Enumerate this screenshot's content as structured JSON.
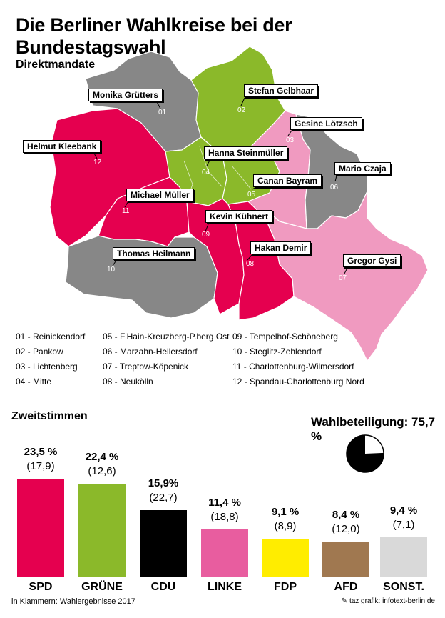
{
  "title": "Die Berliner Wahlkreise bei der Bundestagswahl",
  "direct_section_title": "Direktmandate",
  "districts": [
    {
      "num": "01",
      "name": "Reinickendorf",
      "candidate": "Monika Grütters",
      "color": "#878787"
    },
    {
      "num": "02",
      "name": "Pankow",
      "candidate": "Stefan Gelbhaar",
      "color": "#8bb92a"
    },
    {
      "num": "03",
      "name": "Lichtenberg",
      "candidate": "Gesine Lötzsch",
      "color": "#f09ac0"
    },
    {
      "num": "04",
      "name": "Mitte",
      "candidate": "Hanna Steinmüller",
      "color": "#8bb92a"
    },
    {
      "num": "05",
      "name": "F'Hain-Kreuzberg-P.berg Ost",
      "candidate": "Canan Bayram",
      "color": "#8bb92a"
    },
    {
      "num": "06",
      "name": "Marzahn-Hellersdorf",
      "candidate": "Mario Czaja",
      "color": "#878787"
    },
    {
      "num": "07",
      "name": "Treptow-Köpenick",
      "candidate": "Gregor Gysi",
      "color": "#f09ac0"
    },
    {
      "num": "08",
      "name": "Neukölln",
      "candidate": "Hakan Demir",
      "color": "#e5004f"
    },
    {
      "num": "09",
      "name": "Tempelhof-Schöneberg",
      "candidate": "Kevin Kühnert",
      "color": "#e5004f"
    },
    {
      "num": "10",
      "name": "Steglitz-Zehlendorf",
      "candidate": "Thomas Heilmann",
      "color": "#878787"
    },
    {
      "num": "11",
      "name": "Charlottenburg-Wilmersdorf",
      "candidate": "Michael Müller",
      "color": "#e5004f"
    },
    {
      "num": "12",
      "name": "Spandau-Charlottenburg Nord",
      "candidate": "Helmut Kleebank",
      "color": "#e5004f"
    }
  ],
  "legend_items": [
    "01 - Reinickendorf",
    "02 - Pankow",
    "03 - Lichtenberg",
    "04 - Mitte",
    "05 - F'Hain-Kreuzberg-P.berg Ost",
    "06 - Marzahn-Hellersdorf",
    "07 - Treptow-Köpenick",
    "08 - Neukölln",
    "09 - Tempelhof-Schöneberg",
    "10 - Steglitz-Zehlendorf",
    "11 - Charlottenburg-Wilmersdorf",
    "12 - Spandau-Charlottenburg Nord"
  ],
  "turnout": {
    "label": "Wahlbeteiligung: 75,7 %",
    "value": 75.7
  },
  "chart_data": {
    "type": "bar",
    "title": "Zweitstimmen",
    "categories": [
      "SPD",
      "GRÜNE",
      "CDU",
      "LINKE",
      "FDP",
      "AFD",
      "SONST."
    ],
    "values": [
      23.5,
      22.4,
      15.9,
      11.4,
      9.1,
      8.4,
      9.4
    ],
    "value_labels": [
      "23,5 %",
      "22,4 %",
      "15,9%",
      "11,4 %",
      "9,1 %",
      "8,4 %",
      "9,4 %"
    ],
    "series": [
      {
        "values": [
          23.5,
          22.4,
          15.9,
          11.4,
          9.1,
          8.4,
          9.4
        ]
      },
      {
        "values": [
          17.9,
          12.6,
          22.7,
          18.8,
          8.9,
          12.0,
          7.1
        ]
      }
    ],
    "previous_labels": [
      "(17,9)",
      "(12,6)",
      "(22,7)",
      "(18,8)",
      "(8,9)",
      "(12,0)",
      "(7,1)"
    ],
    "colors": [
      "#e5004f",
      "#8bb92a",
      "#000000",
      "#e85d9f",
      "#ffed00",
      "#a07850",
      "#d9d9d9"
    ]
  },
  "footer_left": "in Klammern: Wahlergebnisse 2017",
  "footer_right": "taz grafik: infotext-berlin.de"
}
